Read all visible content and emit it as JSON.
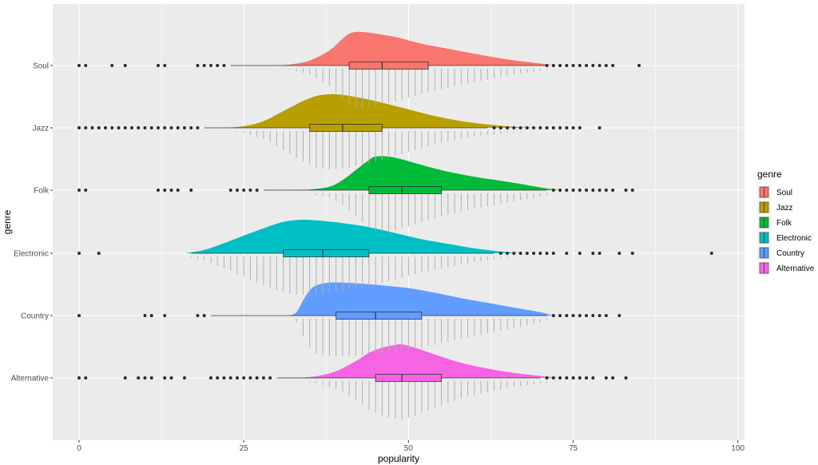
{
  "chart_data": {
    "type": "raincloud",
    "title": "",
    "xlabel": "popularity",
    "ylabel": "genre",
    "xlim": [
      -4,
      101
    ],
    "x_ticks": [
      0,
      25,
      50,
      75,
      100
    ],
    "grid": true,
    "legend": {
      "title": "genre",
      "position": "right"
    },
    "categories": [
      "Soul",
      "Jazz",
      "Folk",
      "Electronic",
      "Country",
      "Alternative"
    ],
    "series": [
      {
        "name": "Soul",
        "color": "#F8766D",
        "box": {
          "q1": 41,
          "median": 46,
          "q3": 53,
          "whisker_low": 23,
          "whisker_high": 71
        },
        "density": [
          [
            29,
            0
          ],
          [
            32,
            0.03
          ],
          [
            35,
            0.15
          ],
          [
            38,
            0.45
          ],
          [
            40,
            0.8
          ],
          [
            41,
            0.95
          ],
          [
            42,
            1.0
          ],
          [
            43,
            1.0
          ],
          [
            45,
            0.95
          ],
          [
            48,
            0.85
          ],
          [
            52,
            0.65
          ],
          [
            56,
            0.5
          ],
          [
            60,
            0.35
          ],
          [
            65,
            0.18
          ],
          [
            70,
            0.06
          ],
          [
            72,
            0
          ]
        ],
        "outliers": [
          0,
          1,
          5,
          7,
          12,
          13,
          18,
          19,
          20,
          21,
          22,
          71,
          72,
          73,
          74,
          75,
          76,
          77,
          78,
          79,
          80,
          81,
          85
        ]
      },
      {
        "name": "Jazz",
        "color": "#B79F00",
        "box": {
          "q1": 35,
          "median": 40,
          "q3": 46,
          "whisker_low": 19,
          "whisker_high": 62
        },
        "density": [
          [
            22,
            0
          ],
          [
            25,
            0.05
          ],
          [
            28,
            0.2
          ],
          [
            31,
            0.5
          ],
          [
            34,
            0.8
          ],
          [
            36,
            0.95
          ],
          [
            38,
            1.0
          ],
          [
            40,
            0.98
          ],
          [
            43,
            0.88
          ],
          [
            46,
            0.75
          ],
          [
            50,
            0.55
          ],
          [
            54,
            0.35
          ],
          [
            58,
            0.2
          ],
          [
            62,
            0.1
          ],
          [
            66,
            0.03
          ],
          [
            70,
            0
          ]
        ],
        "outliers": [
          0,
          1,
          2,
          3,
          4,
          5,
          6,
          7,
          8,
          9,
          10,
          11,
          12,
          13,
          14,
          15,
          16,
          17,
          18,
          63,
          64,
          65,
          66,
          67,
          68,
          69,
          70,
          71,
          72,
          73,
          74,
          75,
          76,
          79
        ]
      },
      {
        "name": "Folk",
        "color": "#00BA38",
        "box": {
          "q1": 44,
          "median": 49,
          "q3": 55,
          "whisker_low": 28,
          "whisker_high": 71
        },
        "density": [
          [
            32,
            0
          ],
          [
            35,
            0.02
          ],
          [
            38,
            0.1
          ],
          [
            40,
            0.3
          ],
          [
            42,
            0.6
          ],
          [
            44,
            0.9
          ],
          [
            45,
            1.0
          ],
          [
            47,
            1.0
          ],
          [
            49,
            0.92
          ],
          [
            52,
            0.75
          ],
          [
            56,
            0.55
          ],
          [
            60,
            0.4
          ],
          [
            64,
            0.28
          ],
          [
            68,
            0.15
          ],
          [
            71,
            0.05
          ],
          [
            73,
            0
          ]
        ],
        "outliers": [
          0,
          1,
          12,
          13,
          14,
          15,
          17,
          23,
          24,
          25,
          26,
          27,
          72,
          73,
          74,
          75,
          76,
          77,
          78,
          79,
          80,
          81,
          83,
          84
        ]
      },
      {
        "name": "Electronic",
        "color": "#00BFC4",
        "box": {
          "q1": 31,
          "median": 37,
          "q3": 44,
          "whisker_low": 17,
          "whisker_high": 63
        },
        "density": [
          [
            16,
            0
          ],
          [
            19,
            0.1
          ],
          [
            22,
            0.3
          ],
          [
            26,
            0.6
          ],
          [
            30,
            0.88
          ],
          [
            32,
            0.97
          ],
          [
            34,
            1.0
          ],
          [
            36,
            0.98
          ],
          [
            40,
            0.9
          ],
          [
            44,
            0.78
          ],
          [
            48,
            0.6
          ],
          [
            52,
            0.42
          ],
          [
            56,
            0.28
          ],
          [
            60,
            0.15
          ],
          [
            64,
            0.05
          ],
          [
            67,
            0
          ]
        ],
        "outliers": [
          0,
          3,
          64,
          65,
          66,
          67,
          68,
          69,
          70,
          71,
          72,
          74,
          76,
          78,
          79,
          82,
          84,
          96
        ]
      },
      {
        "name": "Country",
        "color": "#619CFF",
        "box": {
          "q1": 39,
          "median": 45,
          "q3": 52,
          "whisker_low": 20,
          "whisker_high": 71
        },
        "density": [
          [
            32,
            0
          ],
          [
            33,
            0.1
          ],
          [
            34,
            0.45
          ],
          [
            35,
            0.75
          ],
          [
            36,
            0.9
          ],
          [
            38,
            0.98
          ],
          [
            40,
            0.98
          ],
          [
            43,
            0.95
          ],
          [
            46,
            0.9
          ],
          [
            50,
            0.82
          ],
          [
            54,
            0.68
          ],
          [
            58,
            0.52
          ],
          [
            62,
            0.38
          ],
          [
            66,
            0.24
          ],
          [
            70,
            0.1
          ],
          [
            72,
            0
          ]
        ],
        "outliers": [
          0,
          10,
          11,
          13,
          18,
          19,
          72,
          73,
          74,
          75,
          76,
          77,
          78,
          79,
          80,
          82
        ]
      },
      {
        "name": "Alternative",
        "color": "#F564E3",
        "box": {
          "q1": 45,
          "median": 49,
          "q3": 55,
          "whisker_low": 30,
          "whisker_high": 70
        },
        "density": [
          [
            33,
            0
          ],
          [
            36,
            0.05
          ],
          [
            39,
            0.2
          ],
          [
            42,
            0.5
          ],
          [
            44,
            0.75
          ],
          [
            46,
            0.9
          ],
          [
            48,
            0.98
          ],
          [
            49,
            1.0
          ],
          [
            51,
            0.9
          ],
          [
            54,
            0.7
          ],
          [
            58,
            0.45
          ],
          [
            62,
            0.28
          ],
          [
            66,
            0.15
          ],
          [
            70,
            0.06
          ],
          [
            73,
            0
          ]
        ],
        "outliers": [
          0,
          1,
          7,
          9,
          10,
          11,
          13,
          14,
          16,
          20,
          21,
          22,
          23,
          24,
          25,
          26,
          27,
          28,
          29,
          71,
          72,
          73,
          74,
          75,
          76,
          77,
          78,
          80,
          81,
          83
        ]
      }
    ]
  }
}
